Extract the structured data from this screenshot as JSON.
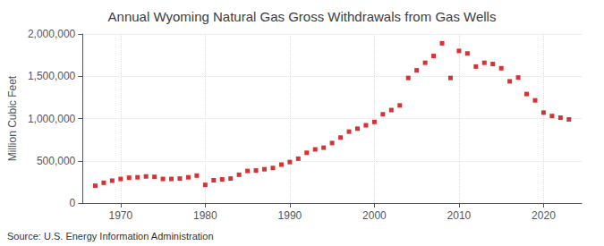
{
  "chart_data": {
    "type": "scatter",
    "title": "Annual Wyoming Natural Gas Gross Withdrawals from Gas Wells",
    "ylabel": "Million Cubic Feet",
    "source": "Source: U.S. Energy Information Administration",
    "x": [
      1967,
      1968,
      1969,
      1970,
      1971,
      1972,
      1973,
      1974,
      1975,
      1976,
      1977,
      1978,
      1979,
      1980,
      1981,
      1982,
      1983,
      1984,
      1985,
      1986,
      1987,
      1988,
      1989,
      1990,
      1991,
      1992,
      1993,
      1994,
      1995,
      1996,
      1997,
      1998,
      1999,
      2000,
      2001,
      2002,
      2003,
      2004,
      2005,
      2006,
      2007,
      2008,
      2009,
      2010,
      2011,
      2012,
      2013,
      2014,
      2015,
      2016,
      2017,
      2018,
      2019,
      2020,
      2021,
      2022,
      2023
    ],
    "values": [
      205000,
      240000,
      265000,
      285000,
      300000,
      305000,
      315000,
      310000,
      285000,
      285000,
      290000,
      305000,
      325000,
      215000,
      270000,
      280000,
      290000,
      335000,
      380000,
      385000,
      400000,
      415000,
      455000,
      485000,
      525000,
      595000,
      635000,
      655000,
      710000,
      775000,
      845000,
      880000,
      920000,
      960000,
      1050000,
      1100000,
      1155000,
      1480000,
      1570000,
      1660000,
      1740000,
      1890000,
      1480000,
      1800000,
      1770000,
      1615000,
      1660000,
      1645000,
      1595000,
      1440000,
      1485000,
      1290000,
      1215000,
      1070000,
      1030000,
      1010000,
      990000
    ],
    "color": "#cc0000",
    "marker": "square",
    "xlim": [
      1965.5,
      2024.5
    ],
    "xticks": [
      1970,
      1980,
      1990,
      2000,
      2010,
      2020
    ],
    "ylim": [
      0,
      2000000
    ],
    "yticks": [
      0,
      {
        "value": 500000,
        "label": "500,000"
      },
      {
        "value": 1000000,
        "label": "1,000,000"
      },
      {
        "value": 1500000,
        "label": "1,500,000"
      },
      {
        "value": 2000000,
        "label": "2,000,000"
      }
    ],
    "grid": true
  }
}
